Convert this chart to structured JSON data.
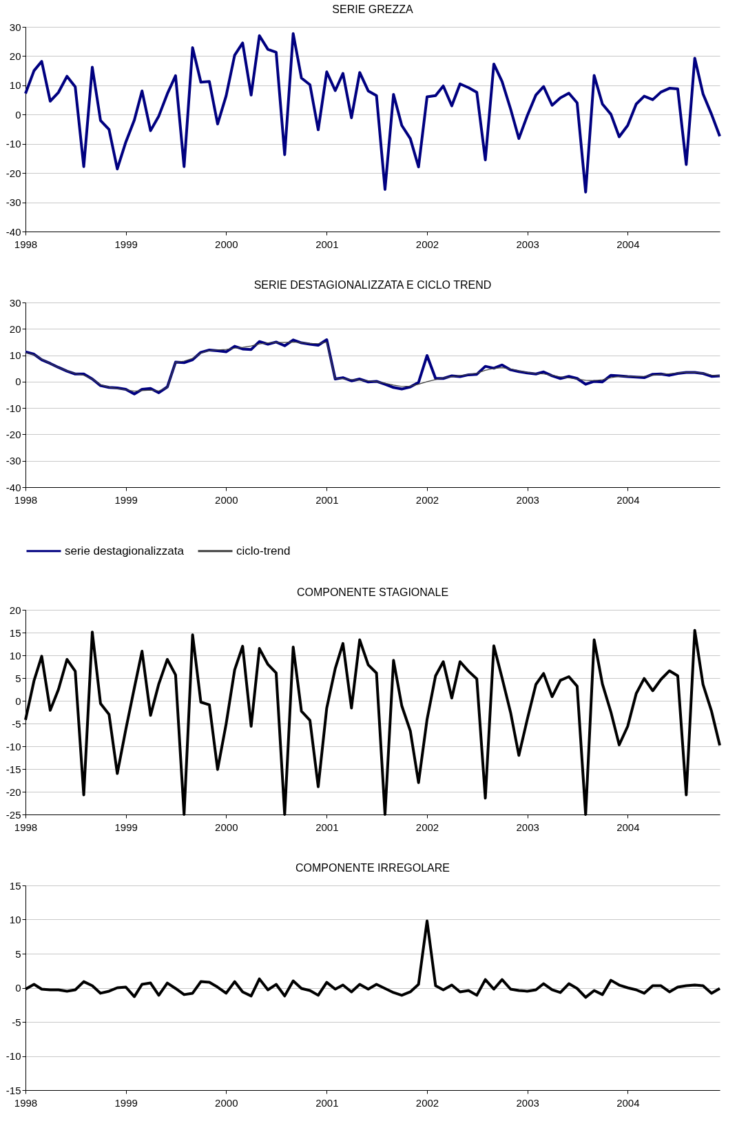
{
  "chart_data": [
    {
      "type": "line",
      "title": "SERIE GREZZA",
      "x": [
        "1998-01",
        "1998-02",
        "1998-03",
        "1998-04",
        "1998-05",
        "1998-06",
        "1998-07",
        "1998-08",
        "1998-09",
        "1998-10",
        "1998-11",
        "1998-12",
        "1999-01",
        "1999-02",
        "1999-03",
        "1999-04",
        "1999-05",
        "1999-06",
        "1999-07",
        "1999-08",
        "1999-09",
        "1999-10",
        "1999-11",
        "1999-12",
        "2000-01",
        "2000-02",
        "2000-03",
        "2000-04",
        "2000-05",
        "2000-06",
        "2000-07",
        "2000-08",
        "2000-09",
        "2000-10",
        "2000-11",
        "2000-12",
        "2001-01",
        "2001-02",
        "2001-03",
        "2001-04",
        "2001-05",
        "2001-06",
        "2001-07",
        "2001-08",
        "2001-09",
        "2001-10",
        "2001-11",
        "2001-12",
        "2002-01",
        "2002-02",
        "2002-03",
        "2002-04",
        "2002-05",
        "2002-06",
        "2002-07",
        "2002-08",
        "2002-09",
        "2002-10",
        "2002-11",
        "2002-12",
        "2003-01",
        "2003-02",
        "2003-03",
        "2003-04",
        "2003-05",
        "2003-06",
        "2003-07",
        "2003-08",
        "2003-09",
        "2003-10",
        "2003-11",
        "2003-12",
        "2004-01",
        "2004-02",
        "2004-03",
        "2004-04",
        "2004-05",
        "2004-06",
        "2004-07",
        "2004-08",
        "2004-09",
        "2004-10",
        "2004-11",
        "2004-12"
      ],
      "series": [
        {
          "color": "#000080",
          "values": [
            7.2,
            15,
            18.2,
            4.6,
            7.6,
            13.1,
            9.5,
            -17.8,
            16.2,
            -2,
            -5.1,
            -18.6,
            -9.4,
            -1.9,
            8.1,
            -5.5,
            -0.5,
            7.1,
            13.3,
            -17.8,
            22.9,
            11.1,
            11.3,
            -3.2,
            6.4,
            20.3,
            24.5,
            6.7,
            27,
            22.3,
            21.3,
            -13.7,
            27.7,
            12.5,
            10.2,
            -5.2,
            14.6,
            8.2,
            14.1,
            -1.1,
            14.4,
            8.1,
            6.5,
            -25.6,
            6.9,
            -3.7,
            -8.2,
            -17.9,
            6.1,
            6.5,
            9.8,
            3,
            10.5,
            9.2,
            7.6,
            -15.5,
            17.3,
            11.3,
            1.9,
            -8.2,
            -0.3,
            6.7,
            9.6,
            3.2,
            5.7,
            7.3,
            4,
            -26.5,
            13.4,
            3.6,
            0.1,
            -7.6,
            -3.7,
            3.6,
            6.3,
            5.1,
            7.7,
            9,
            8.8,
            -17.1,
            19.3,
            7.1,
            0.1,
            -7.4
          ]
        }
      ],
      "xlim": [
        "1998-01",
        "2004-12"
      ],
      "xticks": [
        "1998",
        "1999",
        "2000",
        "2001",
        "2002",
        "2003",
        "2004"
      ],
      "ylim": [
        -40,
        30
      ],
      "yticks": [
        -40,
        -30,
        -20,
        -10,
        0,
        10,
        20,
        30
      ],
      "grid": "y"
    },
    {
      "type": "line",
      "title": "SERIE DESTAGIONALIZZATA E CICLO TREND",
      "x": [
        "1998-01",
        "1998-02",
        "1998-03",
        "1998-04",
        "1998-05",
        "1998-06",
        "1998-07",
        "1998-08",
        "1998-09",
        "1998-10",
        "1998-11",
        "1998-12",
        "1999-01",
        "1999-02",
        "1999-03",
        "1999-04",
        "1999-05",
        "1999-06",
        "1999-07",
        "1999-08",
        "1999-09",
        "1999-10",
        "1999-11",
        "1999-12",
        "2000-01",
        "2000-02",
        "2000-03",
        "2000-04",
        "2000-05",
        "2000-06",
        "2000-07",
        "2000-08",
        "2000-09",
        "2000-10",
        "2000-11",
        "2000-12",
        "2001-01",
        "2001-02",
        "2001-03",
        "2001-04",
        "2001-05",
        "2001-06",
        "2001-07",
        "2001-08",
        "2001-09",
        "2001-10",
        "2001-11",
        "2001-12",
        "2002-01",
        "2002-02",
        "2002-03",
        "2002-04",
        "2002-05",
        "2002-06",
        "2002-07",
        "2002-08",
        "2002-09",
        "2002-10",
        "2002-11",
        "2002-12",
        "2003-01",
        "2003-02",
        "2003-03",
        "2003-04",
        "2003-05",
        "2003-06",
        "2003-07",
        "2003-08",
        "2003-09",
        "2003-10",
        "2003-11",
        "2003-12",
        "2004-01",
        "2004-02",
        "2004-03",
        "2004-04",
        "2004-05",
        "2004-06",
        "2004-07",
        "2004-08",
        "2004-09",
        "2004-10",
        "2004-11",
        "2004-12"
      ],
      "series": [
        {
          "name": "serie destagionalizzata",
          "color": "#000080",
          "values": [
            11.3,
            10.4,
            8.3,
            6.9,
            5.4,
            4,
            2.9,
            2.9,
            1,
            -1.5,
            -2.2,
            -2.4,
            -2.9,
            -4.7,
            -2.9,
            -2.6,
            -4.2,
            -2,
            7.4,
            7.2,
            8.3,
            11.1,
            12,
            11.7,
            11.3,
            13.4,
            12.4,
            12.2,
            15.2,
            14.2,
            15,
            13.6,
            15.8,
            14.7,
            14.2,
            13.8,
            15.9,
            1,
            1.5,
            0.3,
            1,
            -0.1,
            0.1,
            -1,
            -2.2,
            -2.8,
            -2,
            -0.3,
            9.9,
            1.2,
            1.2,
            2.2,
            1.9,
            2.6,
            2.8,
            5.8,
            5.1,
            6.3,
            4.5,
            3.8,
            3.3,
            2.9,
            3.7,
            2.2,
            1.2,
            2,
            1.2,
            -1,
            0.1,
            -0.1,
            2.4,
            2.2,
            1.9,
            1.7,
            1.5,
            2.8,
            2.9,
            2.4,
            3.1,
            3.5,
            3.5,
            3.1,
            2,
            2.2
          ]
        },
        {
          "name": "ciclo-trend",
          "color": "#404040",
          "values": [
            11,
            10.2,
            8.5,
            6.9,
            5.4,
            4.1,
            3.1,
            2.4,
            1,
            -1.2,
            -2.1,
            -2.6,
            -3.1,
            -3.6,
            -3.4,
            -3.2,
            -3.5,
            -2.2,
            7.3,
            7.8,
            8.8,
            10.8,
            11.8,
            12,
            12.2,
            12.7,
            13,
            13.5,
            14.3,
            14.7,
            14.8,
            14.9,
            15,
            14.8,
            14.5,
            14.4,
            15,
            1.2,
            1.1,
            0.8,
            0.6,
            0.3,
            0,
            -0.6,
            -1.3,
            -1.8,
            -1.7,
            -1,
            0,
            0.8,
            1.4,
            1.9,
            2.3,
            2.7,
            3.2,
            4.3,
            5,
            5.3,
            4.8,
            4.1,
            3.5,
            3.1,
            2.9,
            2.4,
            1.8,
            1.4,
            1,
            0.5,
            0.4,
            0.7,
            1.5,
            2,
            2,
            1.9,
            2,
            2.4,
            2.8,
            3,
            3.3,
            3.5,
            3.5,
            3.2,
            2.5,
            2.2
          ]
        }
      ],
      "xlim": [
        "1998-01",
        "2004-12"
      ],
      "xticks": [
        "1998",
        "1999",
        "2000",
        "2001",
        "2002",
        "2003",
        "2004"
      ],
      "ylim": [
        -40,
        30
      ],
      "yticks": [
        -40,
        -30,
        -20,
        -10,
        0,
        10,
        20,
        30
      ],
      "grid": "y",
      "legend": "bottom"
    },
    {
      "type": "line",
      "title": "COMPONENTE STAGIONALE",
      "x": [
        "1998-01",
        "1998-02",
        "1998-03",
        "1998-04",
        "1998-05",
        "1998-06",
        "1998-07",
        "1998-08",
        "1998-09",
        "1998-10",
        "1998-11",
        "1998-12",
        "1999-01",
        "1999-02",
        "1999-03",
        "1999-04",
        "1999-05",
        "1999-06",
        "1999-07",
        "1999-08",
        "1999-09",
        "1999-10",
        "1999-11",
        "1999-12",
        "2000-01",
        "2000-02",
        "2000-03",
        "2000-04",
        "2000-05",
        "2000-06",
        "2000-07",
        "2000-08",
        "2000-09",
        "2000-10",
        "2000-11",
        "2000-12",
        "2001-01",
        "2001-02",
        "2001-03",
        "2001-04",
        "2001-05",
        "2001-06",
        "2001-07",
        "2001-08",
        "2001-09",
        "2001-10",
        "2001-11",
        "2001-12",
        "2002-01",
        "2002-02",
        "2002-03",
        "2002-04",
        "2002-05",
        "2002-06",
        "2002-07",
        "2002-08",
        "2002-09",
        "2002-10",
        "2002-11",
        "2002-12",
        "2003-01",
        "2003-02",
        "2003-03",
        "2003-04",
        "2003-05",
        "2003-06",
        "2003-07",
        "2003-08",
        "2003-09",
        "2003-10",
        "2003-11",
        "2003-12",
        "2004-01",
        "2004-02",
        "2004-03",
        "2004-04",
        "2004-05",
        "2004-06",
        "2004-07",
        "2004-08",
        "2004-09",
        "2004-10",
        "2004-11",
        "2004-12"
      ],
      "series": [
        {
          "color": "#000000",
          "values": [
            -4.2,
            4.4,
            9.8,
            -2.1,
            2.5,
            9.1,
            6.5,
            -20.7,
            15.1,
            -0.6,
            -3,
            -16,
            -6.3,
            2.8,
            10.9,
            -3.2,
            3.7,
            9.1,
            5.7,
            -25,
            14.5,
            -0.3,
            -0.9,
            -15.1,
            -5.1,
            6.8,
            12,
            -5.6,
            11.5,
            8,
            6.1,
            -25,
            11.8,
            -2.3,
            -4.3,
            -18.9,
            -1.6,
            7.1,
            12.6,
            -1.6,
            13.4,
            7.9,
            6.1,
            -25,
            8.9,
            -1.1,
            -6.6,
            -18,
            -4.1,
            5.5,
            8.6,
            0.6,
            8.6,
            6.5,
            4.8,
            -21.4,
            12.1,
            5,
            -2.6,
            -12,
            -4,
            3.6,
            6,
            0.9,
            4.5,
            5.3,
            3.2,
            -25,
            13.4,
            3.7,
            -2.5,
            -9.7,
            -5.6,
            1.6,
            4.9,
            2.2,
            4.7,
            6.6,
            5.5,
            -20.7,
            15.5,
            3.6,
            -2.3,
            -9.8
          ]
        }
      ],
      "xlim": [
        "1998-01",
        "2004-12"
      ],
      "xticks": [
        "1998",
        "1999",
        "2000",
        "2001",
        "2002",
        "2003",
        "2004"
      ],
      "ylim": [
        -25,
        20
      ],
      "yticks": [
        -25,
        -20,
        -15,
        -10,
        -5,
        0,
        5,
        10,
        15,
        20
      ],
      "grid": "y"
    },
    {
      "type": "line",
      "title": "COMPONENTE IRREGOLARE",
      "x": [
        "1998-01",
        "1998-02",
        "1998-03",
        "1998-04",
        "1998-05",
        "1998-06",
        "1998-07",
        "1998-08",
        "1998-09",
        "1998-10",
        "1998-11",
        "1998-12",
        "1999-01",
        "1999-02",
        "1999-03",
        "1999-04",
        "1999-05",
        "1999-06",
        "1999-07",
        "1999-08",
        "1999-09",
        "1999-10",
        "1999-11",
        "1999-12",
        "2000-01",
        "2000-02",
        "2000-03",
        "2000-04",
        "2000-05",
        "2000-06",
        "2000-07",
        "2000-08",
        "2000-09",
        "2000-10",
        "2000-11",
        "2000-12",
        "2001-01",
        "2001-02",
        "2001-03",
        "2001-04",
        "2001-05",
        "2001-06",
        "2001-07",
        "2001-08",
        "2001-09",
        "2001-10",
        "2001-11",
        "2001-12",
        "2002-01",
        "2002-02",
        "2002-03",
        "2002-04",
        "2002-05",
        "2002-06",
        "2002-07",
        "2002-08",
        "2002-09",
        "2002-10",
        "2002-11",
        "2002-12",
        "2003-01",
        "2003-02",
        "2003-03",
        "2003-04",
        "2003-05",
        "2003-06",
        "2003-07",
        "2003-08",
        "2003-09",
        "2003-10",
        "2003-11",
        "2003-12",
        "2004-01",
        "2004-02",
        "2004-03",
        "2004-04",
        "2004-05",
        "2004-06",
        "2004-07",
        "2004-08",
        "2004-09",
        "2004-10",
        "2004-11",
        "2004-12"
      ],
      "series": [
        {
          "color": "#000000",
          "values": [
            -0.2,
            0.5,
            -0.2,
            -0.3,
            -0.3,
            -0.5,
            -0.3,
            0.9,
            0.3,
            -0.8,
            -0.5,
            0,
            0.1,
            -1.3,
            0.5,
            0.7,
            -1.1,
            0.7,
            -0.1,
            -1,
            -0.8,
            0.9,
            0.8,
            0.1,
            -0.8,
            0.9,
            -0.6,
            -1.2,
            1.3,
            -0.3,
            0.5,
            -1.2,
            1,
            -0.1,
            -0.4,
            -1.1,
            0.8,
            -0.2,
            0.4,
            -0.6,
            0.5,
            -0.2,
            0.5,
            -0.1,
            -0.7,
            -1.1,
            -0.6,
            0.5,
            9.8,
            0.3,
            -0.3,
            0.4,
            -0.6,
            -0.4,
            -1.1,
            1.2,
            -0.2,
            1.2,
            -0.2,
            -0.4,
            -0.5,
            -0.3,
            0.6,
            -0.3,
            -0.7,
            0.6,
            -0.1,
            -1.4,
            -0.4,
            -1,
            1.1,
            0.4,
            0,
            -0.3,
            -0.8,
            0.3,
            0.3,
            -0.6,
            0.1,
            0.3,
            0.4,
            0.3,
            -0.8,
            -0.1
          ]
        }
      ],
      "xlim": [
        "1998-01",
        "2004-12"
      ],
      "xticks": [
        "1998",
        "1999",
        "2000",
        "2001",
        "2002",
        "2003",
        "2004"
      ],
      "ylim": [
        -15,
        15
      ],
      "yticks": [
        -15,
        -10,
        -5,
        0,
        5,
        10,
        15
      ],
      "grid": "y"
    }
  ]
}
